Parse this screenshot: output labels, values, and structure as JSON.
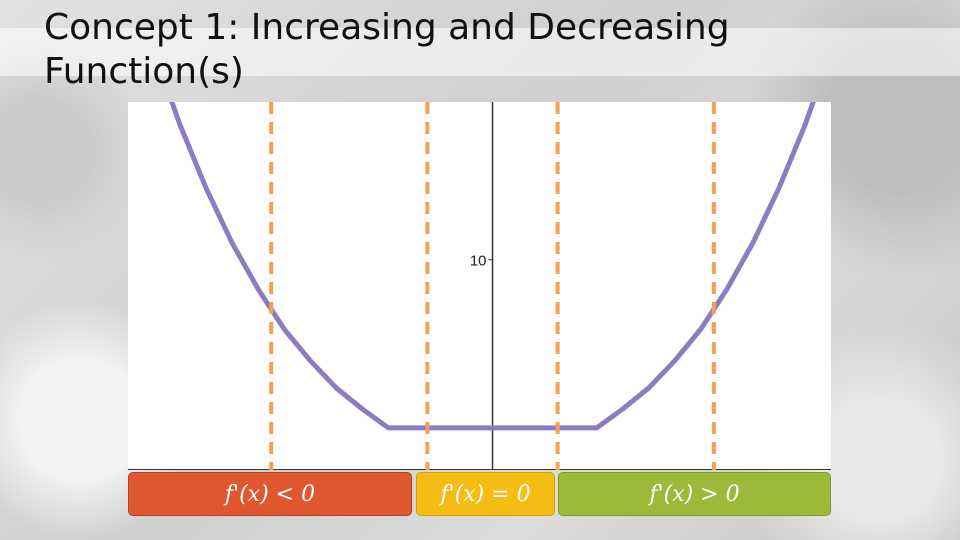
{
  "slide": {
    "title": "Concept 1: Increasing and Decreasing Function(s)"
  },
  "chart_data": {
    "type": "line",
    "series": [
      {
        "color": "#8e7cc3",
        "x": [
          -2.6,
          -2.4,
          -2.2,
          -2.0,
          -1.8,
          -1.6,
          -1.4,
          -1.2,
          -1.0,
          -0.9,
          -0.8,
          -0.6,
          -0.4,
          -0.2,
          0.0,
          0.2,
          0.4,
          0.6,
          0.8,
          1.0,
          1.2,
          1.4,
          1.6,
          1.8,
          2.0,
          2.2,
          2.4,
          2.6
        ],
        "y": [
          19.9,
          16.4,
          13.4,
          10.8,
          8.6,
          6.7,
          5.2,
          3.9,
          2.9,
          2.45,
          2.0,
          2.0,
          2.0,
          2.0,
          2.0,
          2.0,
          2.0,
          2.0,
          2.0,
          2.9,
          3.9,
          5.2,
          6.7,
          8.6,
          10.8,
          13.4,
          16.4,
          19.9
        ]
      }
    ],
    "xlim": [
      -2.8,
      2.6
    ],
    "ylim": [
      0,
      17.5
    ],
    "yticks": [
      10
    ],
    "ytick_labels": [
      "10"
    ],
    "vertical_markers": {
      "color": "#f5a050",
      "x": [
        -1.7,
        -0.5,
        0.5,
        1.7
      ]
    },
    "legend": [
      {
        "label": "f'(x) < 0",
        "color": "#e0582f"
      },
      {
        "label": "f'(x) = 0",
        "color": "#f5bd14"
      },
      {
        "label": "f'(x) > 0",
        "color": "#9db93a"
      }
    ]
  }
}
